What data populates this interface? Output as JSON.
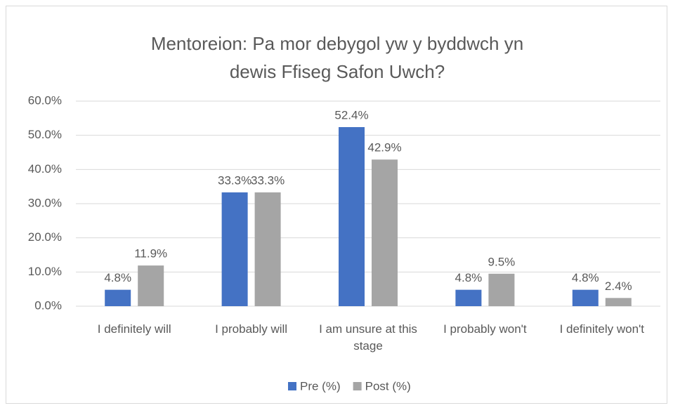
{
  "chart_data": {
    "type": "bar",
    "title": "Mentoreion: Pa mor debygol yw y byddwch yn dewis Ffiseg Safon Uwch?",
    "categories": [
      "I definitely will",
      "I probably will",
      "I am unsure at this stage",
      "I probably won't",
      "I definitely won't"
    ],
    "series": [
      {
        "name": "Pre (%)",
        "color": "#4472c4",
        "values": [
          4.8,
          33.3,
          52.4,
          4.8,
          4.8
        ],
        "value_labels": [
          "4.8%",
          "33.3%",
          "52.4%",
          "4.8%",
          "4.8%"
        ]
      },
      {
        "name": "Post (%)",
        "color": "#a5a5a5",
        "values": [
          11.9,
          33.3,
          42.9,
          9.5,
          2.4
        ],
        "value_labels": [
          "11.9%",
          "33.3%",
          "42.9%",
          "9.5%",
          "2.4%"
        ]
      }
    ],
    "ylim": [
      0,
      60
    ],
    "yticks": [
      {
        "value": 0,
        "label": "0.0%"
      },
      {
        "value": 10,
        "label": "10.0%"
      },
      {
        "value": 20,
        "label": "20.0%"
      },
      {
        "value": 30,
        "label": "30.0%"
      },
      {
        "value": 40,
        "label": "40.0%"
      },
      {
        "value": 50,
        "label": "50.0%"
      },
      {
        "value": 60,
        "label": "60.0%"
      }
    ],
    "grid": true,
    "legend": "bottom"
  }
}
